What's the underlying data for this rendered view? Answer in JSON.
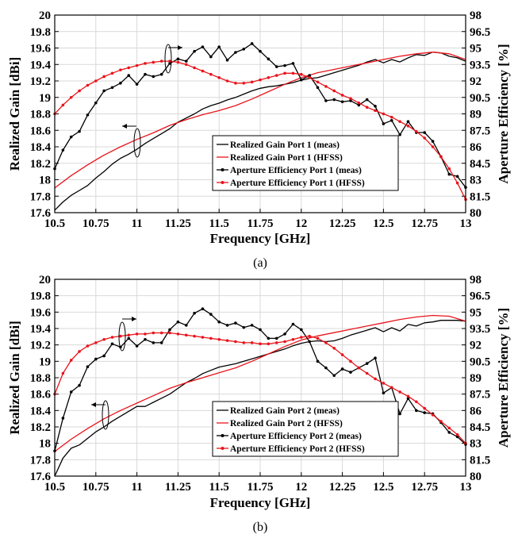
{
  "chart_data": [
    {
      "type": "line",
      "caption": "(a)",
      "xlabel": "Frequency [GHz]",
      "ylabel": "Realized Gain [dBi]",
      "y2label": "Aperture Efficiency [%]",
      "xlim": [
        10.5,
        13
      ],
      "ylim": [
        17.6,
        20
      ],
      "y2lim": [
        80,
        98
      ],
      "xticks": [
        "10.5",
        "10.75",
        "11",
        "11.25",
        "11.5",
        "11.75",
        "12",
        "12.25",
        "12.5",
        "12.75",
        "13"
      ],
      "yticks": [
        "17.6",
        "17.8",
        "18",
        "18.2",
        "18.4",
        "18.6",
        "18.8",
        "19",
        "19.2",
        "19.4",
        "19.6",
        "19.8",
        "20"
      ],
      "y2ticks": [
        "80",
        "81.5",
        "83",
        "84.5",
        "86",
        "87.5",
        "89",
        "90.5",
        "92",
        "93.5",
        "95",
        "96.5",
        "98"
      ],
      "grid": true,
      "legend_position": "bottom-right",
      "series": [
        {
          "name": "Realized Gain Port 1 (meas)",
          "axis": "left",
          "color": "#000000",
          "marker": false,
          "x": [
            10.5,
            10.55,
            10.6,
            10.65,
            10.7,
            10.75,
            10.8,
            10.85,
            10.9,
            10.95,
            11,
            11.05,
            11.1,
            11.15,
            11.2,
            11.25,
            11.3,
            11.35,
            11.4,
            11.45,
            11.5,
            11.55,
            11.6,
            11.65,
            11.7,
            11.75,
            11.8,
            11.85,
            11.9,
            11.95,
            12,
            12.05,
            12.1,
            12.15,
            12.2,
            12.25,
            12.3,
            12.35,
            12.4,
            12.45,
            12.5,
            12.55,
            12.6,
            12.65,
            12.7,
            12.75,
            12.8,
            12.85,
            12.9,
            12.95,
            13
          ],
          "y": [
            17.63,
            17.73,
            17.81,
            17.87,
            17.93,
            18.02,
            18.1,
            18.19,
            18.26,
            18.31,
            18.37,
            18.44,
            18.5,
            18.56,
            18.62,
            18.7,
            18.75,
            18.8,
            18.86,
            18.9,
            18.93,
            18.97,
            19.0,
            19.04,
            19.08,
            19.11,
            19.13,
            19.14,
            19.16,
            19.18,
            19.21,
            19.23,
            19.24,
            19.27,
            19.3,
            19.33,
            19.36,
            19.39,
            19.43,
            19.46,
            19.42,
            19.46,
            19.43,
            19.48,
            19.52,
            19.51,
            19.55,
            19.54,
            19.5,
            19.48,
            19.44
          ]
        },
        {
          "name": "Realized Gain Port 1 (HFSS)",
          "axis": "left",
          "color": "#e8141b",
          "marker": false,
          "x": [
            10.5,
            10.6,
            10.7,
            10.8,
            10.9,
            11,
            11.1,
            11.2,
            11.3,
            11.4,
            11.5,
            11.6,
            11.7,
            11.8,
            11.9,
            12,
            12.1,
            12.2,
            12.3,
            12.4,
            12.5,
            12.6,
            12.7,
            12.8,
            12.9,
            13
          ],
          "y": [
            17.9,
            18.05,
            18.18,
            18.3,
            18.4,
            18.49,
            18.57,
            18.66,
            18.73,
            18.79,
            18.84,
            18.9,
            18.98,
            19.07,
            19.16,
            19.24,
            19.3,
            19.34,
            19.38,
            19.42,
            19.46,
            19.5,
            19.53,
            19.55,
            19.53,
            19.46
          ]
        },
        {
          "name": "Aperture Efficiency Port 1 (meas)",
          "axis": "right",
          "color": "#000000",
          "marker": true,
          "x": [
            10.5,
            10.55,
            10.6,
            10.65,
            10.7,
            10.75,
            10.8,
            10.85,
            10.9,
            10.95,
            11,
            11.05,
            11.1,
            11.15,
            11.2,
            11.25,
            11.3,
            11.35,
            11.4,
            11.45,
            11.5,
            11.55,
            11.6,
            11.65,
            11.7,
            11.75,
            11.8,
            11.85,
            11.9,
            11.95,
            12,
            12.05,
            12.1,
            12.15,
            12.2,
            12.25,
            12.3,
            12.35,
            12.4,
            12.45,
            12.5,
            12.55,
            12.6,
            12.65,
            12.7,
            12.75,
            12.8,
            12.85,
            12.9,
            12.95,
            13
          ],
          "y": [
            84,
            85.7,
            86.9,
            87.4,
            88.9,
            90.0,
            91.1,
            91.4,
            91.8,
            92.5,
            91.7,
            92.6,
            92.4,
            92.6,
            93.6,
            94.0,
            93.8,
            94.7,
            95.1,
            94.2,
            95.1,
            93.9,
            94.6,
            94.9,
            95.4,
            94.7,
            94.0,
            93.3,
            93.4,
            93.6,
            92.1,
            92.5,
            91.4,
            90.2,
            90.3,
            90.1,
            90.2,
            89.8,
            90.3,
            89.7,
            88.1,
            88.4,
            87.1,
            88.3,
            87.3,
            87.3,
            86.5,
            85.1,
            83.5,
            83.3,
            82.3
          ]
        },
        {
          "name": "Aperture Efficiency Port 1 (HFSS)",
          "axis": "right",
          "color": "#e8141b",
          "marker": true,
          "x": [
            10.5,
            10.55,
            10.6,
            10.65,
            10.7,
            10.75,
            10.8,
            10.85,
            10.9,
            10.95,
            11,
            11.05,
            11.1,
            11.15,
            11.2,
            11.25,
            11.3,
            11.35,
            11.4,
            11.45,
            11.5,
            11.55,
            11.6,
            11.65,
            11.7,
            11.75,
            11.8,
            11.85,
            11.9,
            11.95,
            12,
            12.05,
            12.1,
            12.15,
            12.2,
            12.25,
            12.3,
            12.35,
            12.4,
            12.45,
            12.5,
            12.55,
            12.6,
            12.65,
            12.7,
            12.75,
            12.8,
            12.85,
            12.9,
            12.95,
            13
          ],
          "y": [
            89.0,
            89.8,
            90.5,
            91.1,
            91.6,
            92.0,
            92.4,
            92.7,
            93.0,
            93.2,
            93.4,
            93.6,
            93.7,
            93.8,
            93.8,
            93.7,
            93.5,
            93.2,
            92.9,
            92.6,
            92.3,
            92.0,
            91.8,
            91.8,
            91.9,
            92.1,
            92.3,
            92.5,
            92.7,
            92.7,
            92.6,
            92.3,
            91.9,
            91.5,
            91.1,
            90.7,
            90.4,
            90.0,
            89.6,
            89.3,
            89.0,
            88.7,
            88.3,
            87.9,
            87.4,
            86.8,
            86.0,
            85.1,
            84.0,
            82.7,
            81.2
          ]
        }
      ]
    },
    {
      "type": "line",
      "caption": "(b)",
      "xlabel": "Frequency [GHz]",
      "ylabel": "Realized Gain [dBi]",
      "y2label": "Aperture Efficiency [%]",
      "xlim": [
        10.5,
        13
      ],
      "ylim": [
        17.6,
        20
      ],
      "y2lim": [
        80,
        98
      ],
      "xticks": [
        "10.5",
        "10.75",
        "11",
        "11.25",
        "11.5",
        "11.75",
        "12",
        "12.25",
        "12.5",
        "12.75",
        "13"
      ],
      "yticks": [
        "17.6",
        "17.8",
        "18",
        "18.2",
        "18.4",
        "18.6",
        "18.8",
        "19",
        "19.2",
        "19.4",
        "19.6",
        "19.8",
        "20"
      ],
      "y2ticks": [
        "80",
        "81.5",
        "83",
        "84.5",
        "86",
        "87.5",
        "89",
        "90.5",
        "92",
        "93.5",
        "95",
        "96.5",
        "98"
      ],
      "grid": true,
      "legend_position": "bottom-right",
      "series": [
        {
          "name": "Realized Gain Port 2 (meas)",
          "axis": "left",
          "color": "#000000",
          "marker": false,
          "x": [
            10.5,
            10.55,
            10.6,
            10.65,
            10.7,
            10.75,
            10.8,
            10.85,
            10.9,
            10.95,
            11,
            11.05,
            11.1,
            11.15,
            11.2,
            11.25,
            11.3,
            11.35,
            11.4,
            11.45,
            11.5,
            11.55,
            11.6,
            11.65,
            11.7,
            11.75,
            11.8,
            11.85,
            11.9,
            11.95,
            12,
            12.05,
            12.1,
            12.15,
            12.2,
            12.25,
            12.3,
            12.35,
            12.4,
            12.45,
            12.5,
            12.55,
            12.6,
            12.65,
            12.7,
            12.75,
            12.8,
            12.85,
            12.9,
            12.95,
            13
          ],
          "y": [
            17.6,
            17.82,
            17.94,
            17.98,
            18.06,
            18.14,
            18.2,
            18.27,
            18.33,
            18.39,
            18.45,
            18.45,
            18.5,
            18.55,
            18.6,
            18.67,
            18.74,
            18.79,
            18.85,
            18.89,
            18.93,
            18.95,
            18.97,
            19.0,
            19.03,
            19.06,
            19.09,
            19.12,
            19.15,
            19.19,
            19.22,
            19.24,
            19.25,
            19.24,
            19.25,
            19.28,
            19.32,
            19.35,
            19.38,
            19.41,
            19.36,
            19.41,
            19.37,
            19.45,
            19.43,
            19.47,
            19.48,
            19.5,
            19.5,
            19.5,
            19.49
          ]
        },
        {
          "name": "Realized Gain Port 2 (HFSS)",
          "axis": "left",
          "color": "#e8141b",
          "marker": false,
          "x": [
            10.5,
            10.6,
            10.7,
            10.8,
            10.9,
            11,
            11.1,
            11.2,
            11.3,
            11.4,
            11.5,
            11.6,
            11.7,
            11.8,
            11.9,
            12,
            12.1,
            12.2,
            12.3,
            12.4,
            12.5,
            12.6,
            12.7,
            12.8,
            12.9,
            13
          ],
          "y": [
            17.9,
            18.05,
            18.18,
            18.3,
            18.4,
            18.49,
            18.58,
            18.67,
            18.74,
            18.8,
            18.86,
            18.92,
            19.0,
            19.09,
            19.18,
            19.26,
            19.31,
            19.35,
            19.39,
            19.43,
            19.47,
            19.51,
            19.54,
            19.56,
            19.55,
            19.49
          ]
        },
        {
          "name": "Aperture Efficiency Port 2 (meas)",
          "axis": "right",
          "color": "#000000",
          "marker": true,
          "x": [
            10.5,
            10.55,
            10.6,
            10.65,
            10.7,
            10.75,
            10.8,
            10.85,
            10.9,
            10.95,
            11,
            11.05,
            11.1,
            11.15,
            11.2,
            11.25,
            11.3,
            11.35,
            11.4,
            11.45,
            11.5,
            11.55,
            11.6,
            11.65,
            11.7,
            11.75,
            11.8,
            11.85,
            11.9,
            11.95,
            12,
            12.05,
            12.1,
            12.15,
            12.2,
            12.25,
            12.3,
            12.35,
            12.4,
            12.45,
            12.5,
            12.55,
            12.6,
            12.65,
            12.7,
            12.75,
            12.8,
            12.85,
            12.9,
            12.95,
            13
          ],
          "y": [
            82.3,
            85.3,
            87.7,
            88.3,
            90.0,
            90.7,
            91.0,
            92.1,
            91.8,
            92.6,
            91.9,
            92.5,
            92.2,
            92.2,
            93.4,
            94.1,
            93.8,
            94.9,
            95.3,
            94.8,
            94.1,
            93.8,
            94.0,
            93.6,
            93.8,
            93.4,
            92.6,
            92.6,
            93.0,
            93.9,
            93.4,
            92.3,
            90.5,
            89.9,
            89.2,
            89.8,
            89.5,
            89.9,
            90.3,
            90.8,
            87.6,
            88.1,
            85.7,
            87.1,
            86.0,
            85.8,
            85.7,
            84.9,
            84.0,
            83.6,
            82.9
          ]
        },
        {
          "name": "Aperture Efficiency Port 2 (HFSS)",
          "axis": "right",
          "color": "#e8141b",
          "marker": true,
          "x": [
            10.5,
            10.55,
            10.6,
            10.65,
            10.7,
            10.75,
            10.8,
            10.85,
            10.9,
            10.95,
            11,
            11.05,
            11.1,
            11.15,
            11.2,
            11.25,
            11.3,
            11.35,
            11.4,
            11.45,
            11.5,
            11.55,
            11.6,
            11.65,
            11.7,
            11.75,
            11.8,
            11.85,
            11.9,
            11.95,
            12,
            12.05,
            12.1,
            12.15,
            12.2,
            12.25,
            12.3,
            12.35,
            12.4,
            12.45,
            12.5,
            12.55,
            12.6,
            12.65,
            12.7,
            12.75,
            12.8,
            12.85,
            12.9,
            12.95,
            13
          ],
          "y": [
            87.5,
            89.4,
            90.6,
            91.4,
            91.9,
            92.2,
            92.5,
            92.7,
            92.8,
            92.9,
            93.0,
            93.0,
            93.1,
            93.1,
            93.1,
            93.0,
            92.9,
            92.8,
            92.7,
            92.6,
            92.5,
            92.4,
            92.3,
            92.2,
            92.2,
            92.1,
            92.1,
            92.2,
            92.3,
            92.5,
            92.7,
            92.8,
            92.6,
            92.2,
            91.7,
            91.1,
            90.5,
            89.9,
            89.4,
            88.9,
            88.5,
            88.1,
            87.7,
            87.3,
            86.8,
            86.2,
            85.6,
            85.0,
            84.4,
            83.8,
            83.0
          ]
        }
      ]
    }
  ]
}
